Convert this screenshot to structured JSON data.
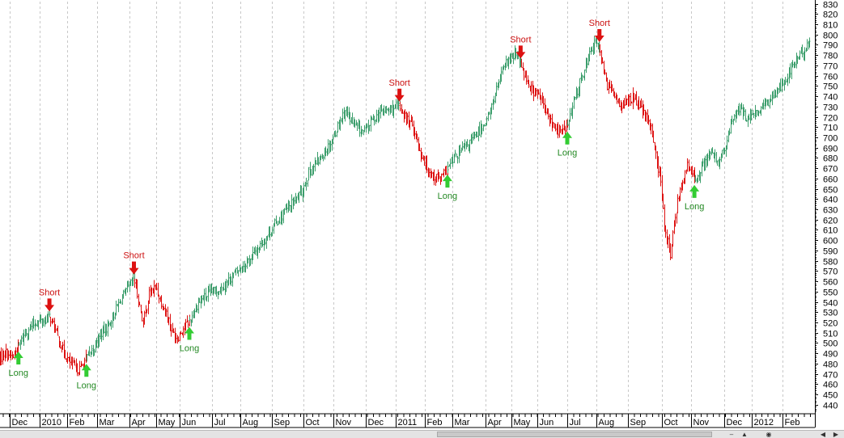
{
  "chart_data": {
    "type": "candlestick",
    "title": "",
    "xlabel": "",
    "ylabel": "",
    "ylim": [
      432,
      832
    ],
    "y_ticks": [
      440,
      450,
      460,
      470,
      480,
      490,
      500,
      510,
      520,
      530,
      540,
      550,
      560,
      570,
      580,
      590,
      600,
      610,
      620,
      630,
      640,
      650,
      660,
      670,
      680,
      690,
      700,
      710,
      720,
      730,
      740,
      750,
      760,
      770,
      780,
      790,
      800,
      810,
      820,
      830
    ],
    "y_axis_position": "right",
    "grid": "vertical dashed at month boundaries",
    "x_ticks": [
      {
        "label": "Dec",
        "date": "2009-12"
      },
      {
        "label": "2010",
        "date": "2010-01"
      },
      {
        "label": "Feb",
        "date": "2010-02"
      },
      {
        "label": "Mar",
        "date": "2010-03"
      },
      {
        "label": "Apr",
        "date": "2010-04"
      },
      {
        "label": "May",
        "date": "2010-05"
      },
      {
        "label": "Jun",
        "date": "2010-06"
      },
      {
        "label": "Jul",
        "date": "2010-07"
      },
      {
        "label": "Aug",
        "date": "2010-08"
      },
      {
        "label": "Sep",
        "date": "2010-09"
      },
      {
        "label": "Oct",
        "date": "2010-10"
      },
      {
        "label": "Nov",
        "date": "2010-11"
      },
      {
        "label": "Dec",
        "date": "2010-12"
      },
      {
        "label": "2011",
        "date": "2011-01"
      },
      {
        "label": "Feb",
        "date": "2011-02"
      },
      {
        "label": "Mar",
        "date": "2011-03"
      },
      {
        "label": "Apr",
        "date": "2011-04"
      },
      {
        "label": "May",
        "date": "2011-05"
      },
      {
        "label": "Jun",
        "date": "2011-06"
      },
      {
        "label": "Jul",
        "date": "2011-07"
      },
      {
        "label": "Aug",
        "date": "2011-08"
      },
      {
        "label": "Sep",
        "date": "2011-09"
      },
      {
        "label": "Oct",
        "date": "2011-10"
      },
      {
        "label": "Nov",
        "date": "2011-11"
      },
      {
        "label": "Dec",
        "date": "2011-12"
      },
      {
        "label": "2012",
        "date": "2012-01"
      },
      {
        "label": "Feb",
        "date": "2012-02"
      }
    ],
    "colors": {
      "long_regime": "#3c9e6c",
      "short_regime": "#dd1111",
      "long_arrow": "#33cc33",
      "short_arrow": "#dd1111",
      "long_text": "#228822",
      "short_text": "#cc1111",
      "grid": "#c8c8c8"
    },
    "series": [
      {
        "regime": "short",
        "points": [
          [
            "2009-11-16",
            480
          ],
          [
            "2009-11-25",
            492
          ],
          [
            "2009-12-04",
            486
          ],
          [
            "2009-12-10",
            498
          ]
        ]
      },
      {
        "regime": "long",
        "points": [
          [
            "2009-12-10",
            498
          ],
          [
            "2009-12-18",
            512
          ],
          [
            "2009-12-28",
            520
          ],
          [
            "2010-01-06",
            522
          ],
          [
            "2010-01-12",
            526
          ]
        ]
      },
      {
        "regime": "short",
        "points": [
          [
            "2010-01-12",
            526
          ],
          [
            "2010-01-20",
            508
          ],
          [
            "2010-01-28",
            490
          ],
          [
            "2010-02-05",
            478
          ],
          [
            "2010-02-12",
            474
          ],
          [
            "2010-02-19",
            486
          ]
        ]
      },
      {
        "regime": "long",
        "points": [
          [
            "2010-02-19",
            486
          ],
          [
            "2010-02-26",
            496
          ],
          [
            "2010-03-05",
            510
          ],
          [
            "2010-03-12",
            518
          ],
          [
            "2010-03-22",
            540
          ],
          [
            "2010-04-01",
            556
          ],
          [
            "2010-04-06",
            562
          ]
        ]
      },
      {
        "regime": "short",
        "points": [
          [
            "2010-04-06",
            562
          ],
          [
            "2010-04-12",
            535
          ],
          [
            "2010-04-16",
            520
          ],
          [
            "2010-04-23",
            548
          ],
          [
            "2010-04-30",
            555
          ],
          [
            "2010-05-07",
            540
          ],
          [
            "2010-05-14",
            530
          ],
          [
            "2010-05-21",
            512
          ],
          [
            "2010-05-28",
            505
          ],
          [
            "2010-06-04",
            515
          ],
          [
            "2010-06-10",
            522
          ]
        ]
      },
      {
        "regime": "long",
        "points": [
          [
            "2010-06-10",
            522
          ],
          [
            "2010-06-18",
            540
          ],
          [
            "2010-06-28",
            548
          ],
          [
            "2010-07-08",
            552
          ],
          [
            "2010-07-20",
            562
          ],
          [
            "2010-07-30",
            572
          ],
          [
            "2010-08-10",
            582
          ],
          [
            "2010-08-24",
            600
          ],
          [
            "2010-09-03",
            615
          ],
          [
            "2010-09-15",
            630
          ],
          [
            "2010-09-28",
            645
          ],
          [
            "2010-10-06",
            665
          ],
          [
            "2010-10-18",
            680
          ],
          [
            "2010-10-29",
            695
          ],
          [
            "2010-11-05",
            712
          ],
          [
            "2010-11-12",
            728
          ],
          [
            "2010-11-19",
            712
          ],
          [
            "2010-11-29",
            705
          ],
          [
            "2010-12-08",
            718
          ],
          [
            "2010-12-17",
            725
          ],
          [
            "2010-12-28",
            728
          ],
          [
            "2011-01-05",
            730
          ]
        ]
      },
      {
        "regime": "short",
        "points": [
          [
            "2011-01-05",
            730
          ],
          [
            "2011-01-12",
            718
          ],
          [
            "2011-01-19",
            712
          ],
          [
            "2011-01-26",
            688
          ],
          [
            "2011-02-03",
            670
          ],
          [
            "2011-02-10",
            662
          ],
          [
            "2011-02-17",
            660
          ],
          [
            "2011-02-24",
            670
          ]
        ]
      },
      {
        "regime": "long",
        "points": [
          [
            "2011-02-24",
            670
          ],
          [
            "2011-03-04",
            682
          ],
          [
            "2011-03-14",
            692
          ],
          [
            "2011-03-25",
            705
          ],
          [
            "2011-04-05",
            722
          ],
          [
            "2011-04-15",
            752
          ],
          [
            "2011-04-26",
            775
          ],
          [
            "2011-05-06",
            780
          ],
          [
            "2011-05-12",
            772
          ]
        ]
      },
      {
        "regime": "short",
        "points": [
          [
            "2011-05-12",
            772
          ],
          [
            "2011-05-19",
            756
          ],
          [
            "2011-05-26",
            745
          ],
          [
            "2011-06-03",
            740
          ],
          [
            "2011-06-10",
            722
          ],
          [
            "2011-06-17",
            710
          ],
          [
            "2011-06-24",
            705
          ],
          [
            "2011-07-01",
            712
          ]
        ]
      },
      {
        "regime": "long",
        "points": [
          [
            "2011-07-01",
            712
          ],
          [
            "2011-07-11",
            745
          ],
          [
            "2011-07-20",
            770
          ],
          [
            "2011-07-29",
            792
          ],
          [
            "2011-08-04",
            788
          ]
        ]
      },
      {
        "regime": "short",
        "points": [
          [
            "2011-08-04",
            788
          ],
          [
            "2011-08-10",
            752
          ],
          [
            "2011-08-18",
            742
          ],
          [
            "2011-08-26",
            730
          ],
          [
            "2011-09-05",
            740
          ],
          [
            "2011-09-14",
            725
          ],
          [
            "2011-09-22",
            705
          ],
          [
            "2011-09-29",
            660
          ],
          [
            "2011-10-04",
            610
          ],
          [
            "2011-10-10",
            585
          ],
          [
            "2011-10-14",
            620
          ],
          [
            "2011-10-21",
            655
          ],
          [
            "2011-10-28",
            672
          ],
          [
            "2011-11-04",
            660
          ]
        ]
      },
      {
        "regime": "long",
        "points": [
          [
            "2011-11-04",
            660
          ],
          [
            "2011-11-11",
            672
          ],
          [
            "2011-11-18",
            685
          ],
          [
            "2011-11-25",
            676
          ],
          [
            "2011-12-02",
            690
          ],
          [
            "2011-12-09",
            715
          ],
          [
            "2011-12-16",
            728
          ],
          [
            "2011-12-23",
            722
          ],
          [
            "2011-12-30",
            718
          ],
          [
            "2012-01-06",
            725
          ],
          [
            "2012-01-13",
            730
          ],
          [
            "2012-01-20",
            738
          ],
          [
            "2012-01-27",
            748
          ],
          [
            "2012-02-03",
            755
          ],
          [
            "2012-02-10",
            768
          ],
          [
            "2012-02-17",
            778
          ],
          [
            "2012-02-24",
            786
          ],
          [
            "2012-02-29",
            790
          ]
        ]
      }
    ],
    "signals": [
      {
        "type": "long",
        "label": "Long",
        "date": "2009-12-10",
        "price": 498
      },
      {
        "type": "short",
        "label": "Short",
        "date": "2010-01-12",
        "price": 526
      },
      {
        "type": "long",
        "label": "Long",
        "date": "2010-02-19",
        "price": 486
      },
      {
        "type": "short",
        "label": "Short",
        "date": "2010-04-06",
        "price": 562
      },
      {
        "type": "long",
        "label": "Long",
        "date": "2010-06-10",
        "price": 522
      },
      {
        "type": "short",
        "label": "Short",
        "date": "2011-01-05",
        "price": 730
      },
      {
        "type": "long",
        "label": "Long",
        "date": "2011-02-24",
        "price": 670
      },
      {
        "type": "short",
        "label": "Short",
        "date": "2011-05-12",
        "price": 772
      },
      {
        "type": "long",
        "label": "Long",
        "date": "2011-07-01",
        "price": 712
      },
      {
        "type": "short",
        "label": "Short",
        "date": "2011-08-04",
        "price": 788
      },
      {
        "type": "long",
        "label": "Long",
        "date": "2011-11-04",
        "price": 660
      }
    ]
  },
  "scrollbar": {
    "left_icons": [
      "scroll-left-icon"
    ],
    "right_icons": [
      "zoom-out-icon",
      "zoom-in-icon",
      "scroll-first-icon",
      "scroll-right-icon"
    ]
  }
}
